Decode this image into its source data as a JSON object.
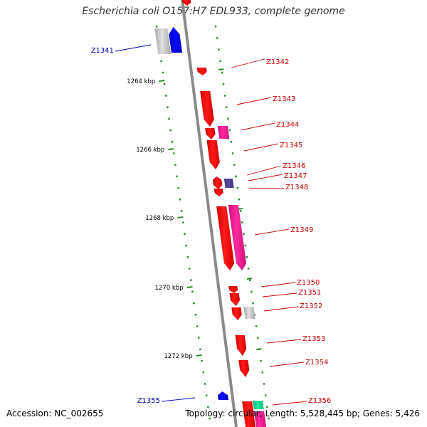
{
  "title": "Escherichia coli O157:H7 EDL933, complete genome",
  "footer": {
    "accession": "Accession: NC_002655",
    "summary": "Topology: circular; Length: 5,528,445 bp; Genes: 5,426"
  },
  "colors": {
    "backbone": "#8a8a8a",
    "tick": "#2e8b2e",
    "label_red": "#cc0000",
    "label_blue": "#0000aa",
    "gene_red": "#ff1a1a",
    "gene_pink": "#ff2aa0",
    "gene_blue": "#0a0aff",
    "gene_gray": "#c4c4c4",
    "gene_purple": "#5a4a9a",
    "gene_teal": "#20e8a0"
  },
  "kbp_labels": [
    "1264 kbp",
    "1266 kbp",
    "1268 kbp",
    "1270 kbp",
    "1272 kbp"
  ],
  "genes": [
    {
      "label": "Z1341",
      "color": "blue"
    },
    {
      "label": "Z1342",
      "color": "red"
    },
    {
      "label": "Z1343",
      "color": "red"
    },
    {
      "label": "Z1344",
      "color": "red"
    },
    {
      "label": "Z1345",
      "color": "red"
    },
    {
      "label": "Z1346",
      "color": "red"
    },
    {
      "label": "Z1347",
      "color": "red"
    },
    {
      "label": "Z1348",
      "color": "red"
    },
    {
      "label": "Z1349",
      "color": "red"
    },
    {
      "label": "Z1350",
      "color": "red"
    },
    {
      "label": "Z1351",
      "color": "red"
    },
    {
      "label": "Z1352",
      "color": "red"
    },
    {
      "label": "Z1353",
      "color": "red"
    },
    {
      "label": "Z1354",
      "color": "red"
    },
    {
      "label": "Z1355",
      "color": "blue"
    },
    {
      "label": "Z1356",
      "color": "red"
    }
  ]
}
